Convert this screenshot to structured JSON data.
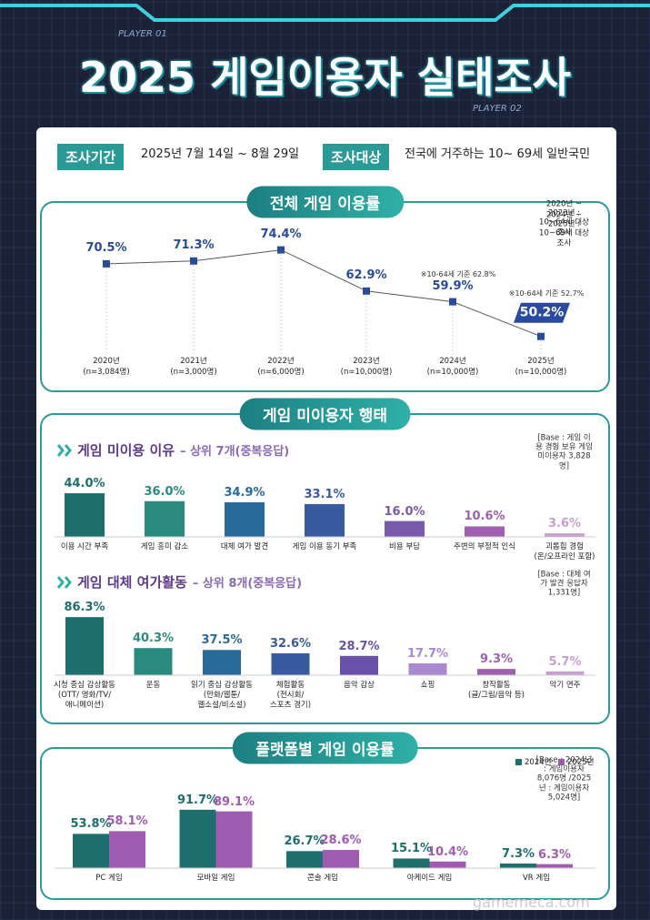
{
  "header": {
    "player1": "PLAYER 01",
    "player2": "PLAYER 02",
    "title": "2025 게임이용자 실태조사"
  },
  "survey": {
    "period_label": "조사기간",
    "period": "2025년 7월 14일 ~ 8월 29일",
    "target_label": "조사대상",
    "target": "전국에 거주하는 10~ 69세 일반국민"
  },
  "section_title": "게임 미이용자 행태",
  "chart_data": [
    {
      "type": "line",
      "title": "전체 게임 이용률",
      "notes": [
        "2020년 ~ 2023년 : 10~64세 대상 조사",
        "2024년 ~ 2025년 : 10~69세 대상 조사"
      ],
      "categories": [
        "2020년",
        "2021년",
        "2022년",
        "2023년",
        "2024년",
        "2025년"
      ],
      "sample_sizes": [
        "(n=3,084명)",
        "(n=3,000명)",
        "(n=6,000명)",
        "(n=10,000명)",
        "(n=10,000명)",
        "(n=10,000명)"
      ],
      "values": [
        70.5,
        71.3,
        74.4,
        62.9,
        59.9,
        50.2
      ],
      "value_labels": [
        "70.5%",
        "71.3%",
        "74.4%",
        "62.9%",
        "59.9%",
        "50.2%"
      ],
      "annotations": [
        "※10-64세 기준 62.8%",
        "※10-64세 기준 52.7%"
      ],
      "color": "#2a4a9a"
    },
    {
      "type": "bar",
      "title": "게임 미이용 이유",
      "subtitle": "– 상위 7개(중복응답)",
      "base": "[Base : 게임 이용 경험 보유 게임 미이용자 3,828명]",
      "categories": [
        "이용 시간 부족",
        "게임 흥미 감소",
        "대체 여가 발견",
        "게임 이용 동기 부족",
        "비용 부담",
        "주변의 부정적 인식",
        "괴롭힘 경험\n(온/오프라인 포함)"
      ],
      "values": [
        44.0,
        36.0,
        34.9,
        33.1,
        16.0,
        10.6,
        3.6
      ],
      "value_labels": [
        "44.0%",
        "36.0%",
        "34.9%",
        "33.1%",
        "16.0%",
        "10.6%",
        "3.6%"
      ],
      "colors": [
        "#1e6e6e",
        "#2a8a7e",
        "#2a6a9a",
        "#3a5aa0",
        "#7a5aaa",
        "#a060b0",
        "#c8a0d0"
      ]
    },
    {
      "type": "bar",
      "title": "게임 대체 여가활동",
      "subtitle": "– 상위 8개(중복응답)",
      "base": "[Base : 대체 여가 발견 응답자 1,331명]",
      "categories": [
        "시청 중심 감상활동\n(OTT/ 영화/TV/\n애니메이션)",
        "운동",
        "읽기 중심 감상활동\n(만화/웹툰/\n웹소설/비소설)",
        "체험활동\n(전시회/\n스포츠 경기)",
        "음악 감상",
        "쇼핑",
        "창작활동\n(글/그림/음악 등)",
        "악기 연주"
      ],
      "values": [
        86.3,
        40.3,
        37.5,
        32.6,
        28.7,
        17.7,
        9.3,
        5.7
      ],
      "value_labels": [
        "86.3%",
        "40.3%",
        "37.5%",
        "32.6%",
        "28.7%",
        "17.7%",
        "9.3%",
        "5.7%"
      ],
      "colors": [
        "#1e6e6e",
        "#2a8a7e",
        "#2a6a9a",
        "#3a5aa0",
        "#6a50a8",
        "#a98ad0",
        "#a060b0",
        "#c8a0d0"
      ]
    },
    {
      "type": "grouped_bar",
      "title": "플랫폼별 게임 이용률",
      "base": "[Base : 2024년 : 게임이용자 8,076명 /2025년 : 게임이용자 5,024명]",
      "categories": [
        "PC 게임",
        "모바일 게임",
        "콘솔 게임",
        "아케이드 게임",
        "VR 게임"
      ],
      "series": [
        {
          "name": "2024년",
          "color": "#1e6e6e",
          "values": [
            53.8,
            91.7,
            26.7,
            15.1,
            7.3
          ],
          "value_labels": [
            "53.8%",
            "91.7%",
            "26.7%",
            "15.1%",
            "7.3%"
          ]
        },
        {
          "name": "2025년",
          "color": "#a05cb0",
          "values": [
            58.1,
            89.1,
            28.6,
            10.4,
            6.3
          ],
          "value_labels": [
            "58.1%",
            "89.1%",
            "28.6%",
            "10.4%",
            "6.3%"
          ]
        }
      ]
    }
  ],
  "watermark": "gamemeca.com"
}
